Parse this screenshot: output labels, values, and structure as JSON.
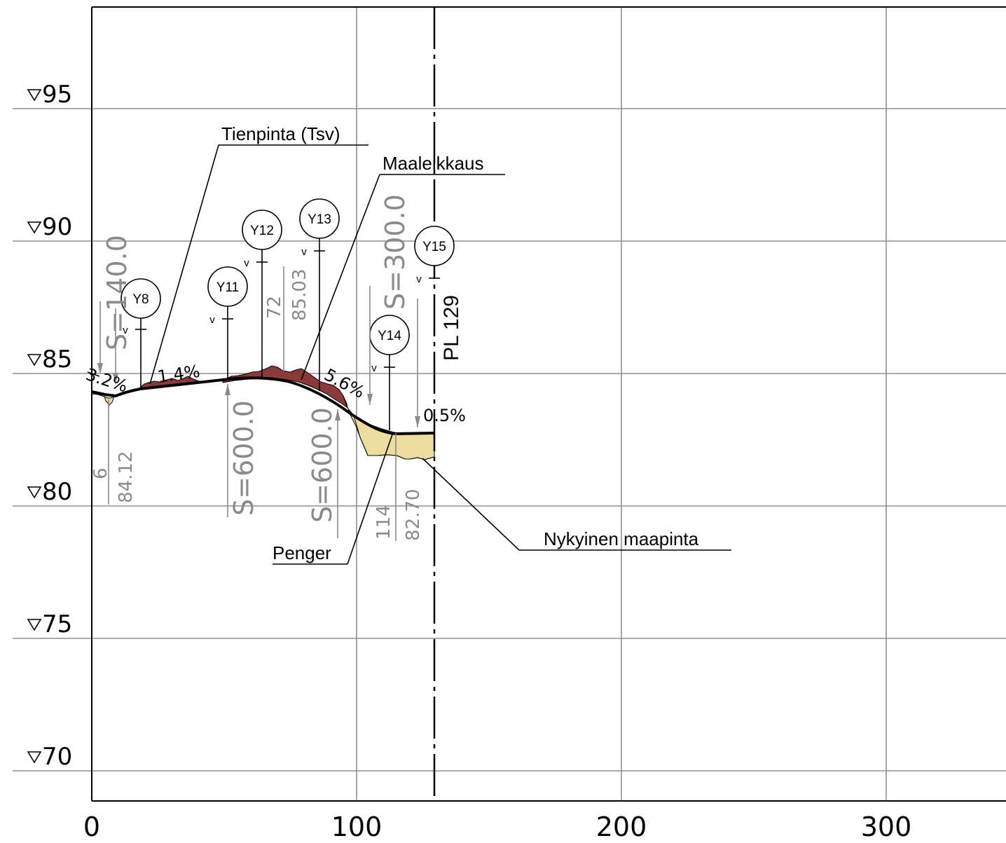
{
  "elevation_labels": [
    "95",
    "90",
    "85",
    "80",
    "75",
    "70"
  ],
  "station_labels": [
    "0",
    "100",
    "200",
    "300"
  ],
  "callouts": {
    "tienpinta": "Tienpinta (Tsv)",
    "maaleikkaus": "Maaleikkaus",
    "penger": "Penger",
    "nykyinen": "Nykyinen maapinta"
  },
  "pl_label": "PL 129",
  "slopes": [
    "3.2%",
    "1.4%",
    "5.6%",
    "0.5%"
  ],
  "points": [
    "Y8",
    "Y11",
    "Y12",
    "Y13",
    "Y14",
    "Y15"
  ],
  "point_marker": "v",
  "vertical_curve_labels": [
    "S=140.0",
    "S=600.0",
    "S=600.0",
    "S=300.0"
  ],
  "breakpoint_labels": {
    "bp1_station": "6",
    "bp1_elev": "84.12",
    "bp2_station": "72",
    "bp2_elev": "85.03",
    "bp3_station": "114",
    "bp3_elev": "82.70"
  },
  "colors": {
    "cut_fill": "#8b3a3a",
    "embankment_fill": "#ecdca0",
    "grid": "#8f8f8f",
    "annotation_grey": "#8a8a8a",
    "line": "#000000"
  }
}
